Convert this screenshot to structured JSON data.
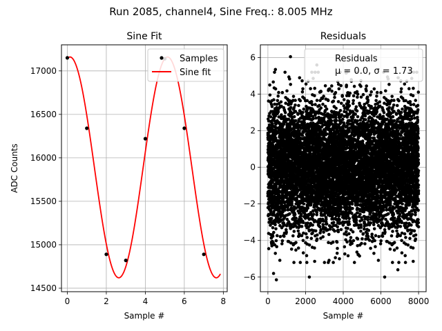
{
  "figure": {
    "suptitle": "Run 2085, channel4, Sine Freq.: 8.005 MHz"
  },
  "chart_data": [
    {
      "type": "scatter+line",
      "title": "Sine Fit",
      "xlabel": "Sample #",
      "ylabel": "ADC Counts",
      "xlim": [
        -0.3,
        8.2
      ],
      "ylim": [
        14460,
        17300
      ],
      "xticks": [
        "0",
        "2",
        "4",
        "6",
        "8"
      ],
      "yticks": [
        "14500",
        "15000",
        "15500",
        "16000",
        "16500",
        "17000"
      ],
      "grid": true,
      "legend": {
        "placement": "top-right",
        "entries": [
          "Samples",
          "Sine fit"
        ]
      },
      "series": [
        {
          "name": "Samples",
          "kind": "scatter",
          "color": "#000000",
          "x": [
            0,
            1,
            2,
            3,
            4,
            5,
            6,
            7
          ],
          "y": [
            17150,
            16340,
            14890,
            14820,
            16220,
            17140,
            16340,
            14890
          ]
        },
        {
          "name": "Sine fit",
          "kind": "line",
          "color": "#ff0000",
          "model": {
            "offset": 15890,
            "amplitude": 1270,
            "period": 5.0,
            "phase_deg": 10,
            "x_start": 0,
            "x_end": 7.85
          }
        }
      ]
    },
    {
      "type": "scatter",
      "title": "Residuals",
      "xlabel": "Sample #",
      "ylabel": "",
      "xlim": [
        -400,
        8400
      ],
      "ylim": [
        -6.8,
        6.7
      ],
      "xticks": [
        "0",
        "2000",
        "4000",
        "6000",
        "8000"
      ],
      "yticks": [
        "−6",
        "−4",
        "−2",
        "0",
        "2",
        "4",
        "6"
      ],
      "grid": true,
      "legend": {
        "placement": "top-right",
        "entries": [
          "Residuals",
          "μ = 0.0, σ = 1.73"
        ]
      },
      "stats": {
        "mu": 0.0,
        "sigma": 1.73,
        "n_samples": 8000
      },
      "series": [
        {
          "name": "Residuals",
          "kind": "scatter",
          "color": "#000000",
          "highlight_points": [
            {
              "x": 1200,
              "y": 6.05
            },
            {
              "x": 2600,
              "y": 5.6
            },
            {
              "x": 400,
              "y": 5.35
            },
            {
              "x": 100,
              "y": 4.5
            },
            {
              "x": 300,
              "y": -5.8
            },
            {
              "x": 450,
              "y": -6.15
            },
            {
              "x": 2200,
              "y": -6.0
            },
            {
              "x": 6200,
              "y": -6.0
            },
            {
              "x": 6900,
              "y": -5.6
            },
            {
              "x": 3800,
              "y": -5.0
            }
          ]
        }
      ]
    }
  ]
}
